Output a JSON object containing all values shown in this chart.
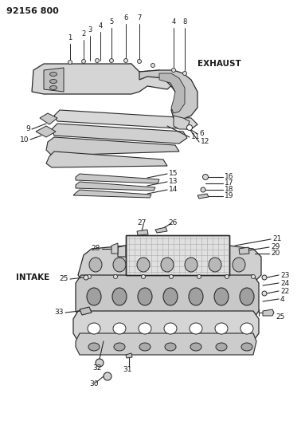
{
  "title": "92156 800",
  "bg_color": "#ffffff",
  "lc": "#2a2a2a",
  "tc": "#1a1a1a",
  "exhaust_label": "EXHAUST",
  "intake_label": "INTAKE"
}
